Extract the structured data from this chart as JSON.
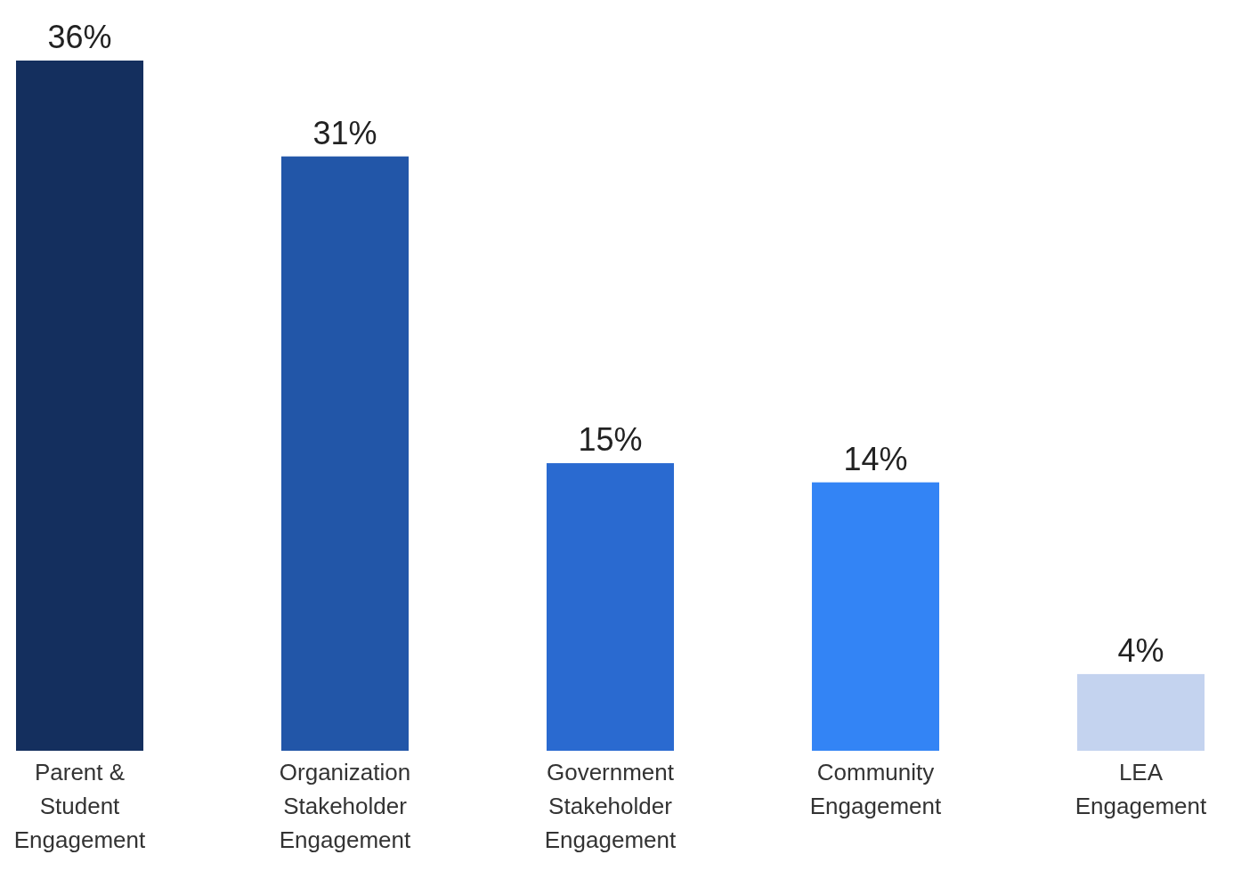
{
  "chart_data": {
    "type": "bar",
    "categories": [
      "Parent & Student Engagement",
      "Organization Stakeholder Engagement",
      "Government Stakeholder Engagement",
      "Community Engagement",
      "LEA Engagement"
    ],
    "values": [
      36,
      31,
      15,
      14,
      4
    ],
    "colors": [
      "#142f5e",
      "#2256a8",
      "#2a6ad0",
      "#3384f5",
      "#c4d3ef"
    ],
    "value_labels": [
      "36%",
      "31%",
      "15%",
      "14%",
      "4%"
    ]
  }
}
